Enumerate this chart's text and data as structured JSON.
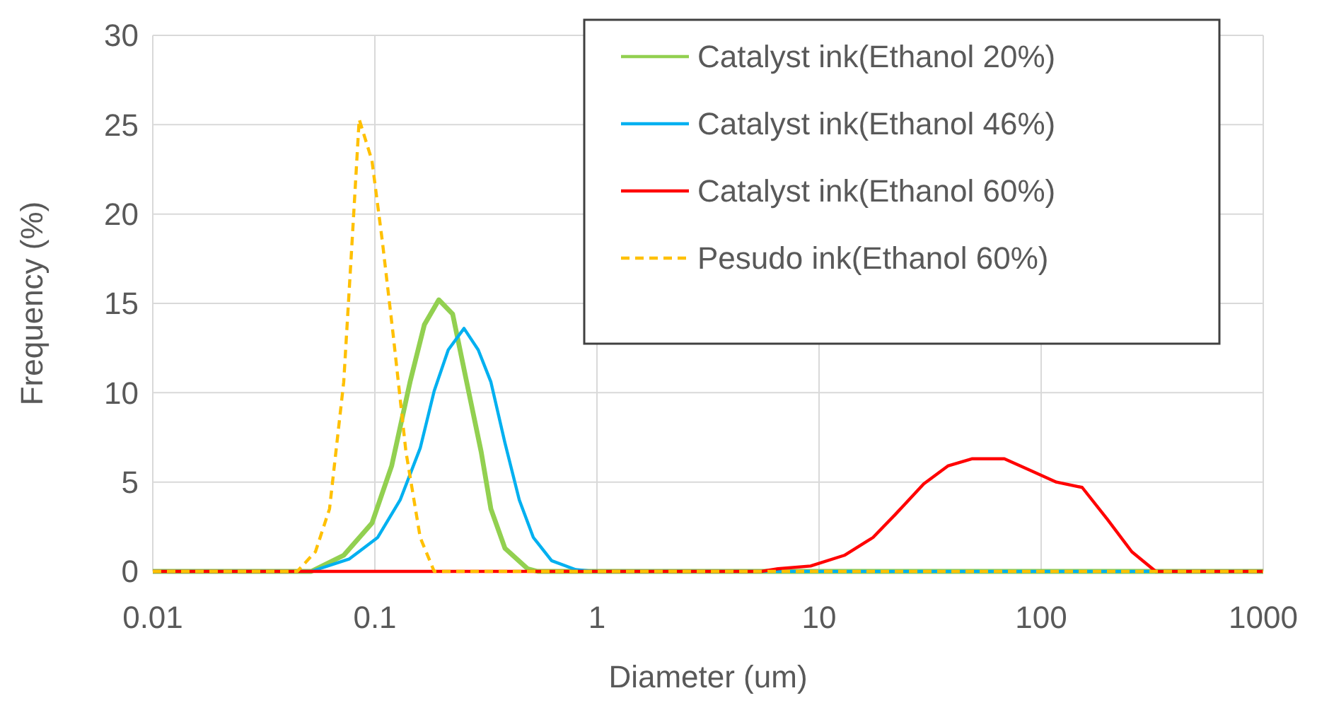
{
  "chart_data": {
    "type": "line",
    "xlabel": "Diameter (um)",
    "ylabel": "Frequency (%)",
    "log": "x",
    "xlim": [
      0.01,
      1000
    ],
    "xticks": [
      0.01,
      0.1,
      1,
      10,
      100,
      1000
    ],
    "ylim": [
      0,
      30
    ],
    "yticks": [
      0,
      5,
      10,
      15,
      20,
      25,
      30
    ],
    "grid": true,
    "legend": "top right",
    "series": [
      {
        "name": "Catalyst ink(Ethanol 20%)",
        "color": "#92d050",
        "x": [
          0.01,
          0.0517,
          0.0724,
          0.097,
          0.119,
          0.144,
          0.167,
          0.194,
          0.224,
          0.259,
          0.301,
          0.333,
          0.385,
          0.487,
          0.54,
          1000
        ],
        "values": [
          0,
          0,
          0.9,
          2.7,
          5.9,
          10.6,
          13.8,
          15.2,
          14.4,
          10.6,
          6.7,
          3.5,
          1.3,
          0.15,
          0,
          0
        ]
      },
      {
        "name": "Catalyst ink(Ethanol 46%)",
        "color": "#00b0f0",
        "x": [
          0.01,
          0.0517,
          0.0768,
          0.103,
          0.13,
          0.16,
          0.185,
          0.214,
          0.252,
          0.292,
          0.333,
          0.385,
          0.447,
          0.517,
          0.625,
          0.802,
          0.97,
          1000
        ],
        "values": [
          0,
          0,
          0.7,
          1.9,
          4,
          6.9,
          10.1,
          12.4,
          13.6,
          12.4,
          10.6,
          7.2,
          4,
          1.9,
          0.6,
          0.1,
          0,
          0
        ]
      },
      {
        "name": "Catalyst ink(Ethanol 60%)",
        "color": "#ff0000",
        "x": [
          0.01,
          5.5,
          6.54,
          9.16,
          13,
          17.5,
          22.1,
          29.6,
          38,
          48.7,
          68.3,
          87.7,
          117,
          153,
          199,
          256,
          328,
          1000
        ],
        "values": [
          0,
          0,
          0.15,
          0.3,
          0.9,
          1.9,
          3.2,
          4.9,
          5.9,
          6.3,
          6.3,
          5.7,
          5,
          4.7,
          2.9,
          1.1,
          0,
          0
        ]
      },
      {
        "name": "Pesudo ink(Ethanol 60%)",
        "color": "#ffc000",
        "line_style": "dashed",
        "x": [
          0.01,
          0.0447,
          0.054,
          0.0625,
          0.0724,
          0.079,
          0.085,
          0.097,
          0.108,
          0.121,
          0.138,
          0.16,
          0.185,
          1000
        ],
        "values": [
          0,
          0,
          1.1,
          3.5,
          10.6,
          18.5,
          25.3,
          23,
          18.5,
          13.2,
          6.7,
          1.9,
          0,
          0
        ]
      }
    ]
  }
}
